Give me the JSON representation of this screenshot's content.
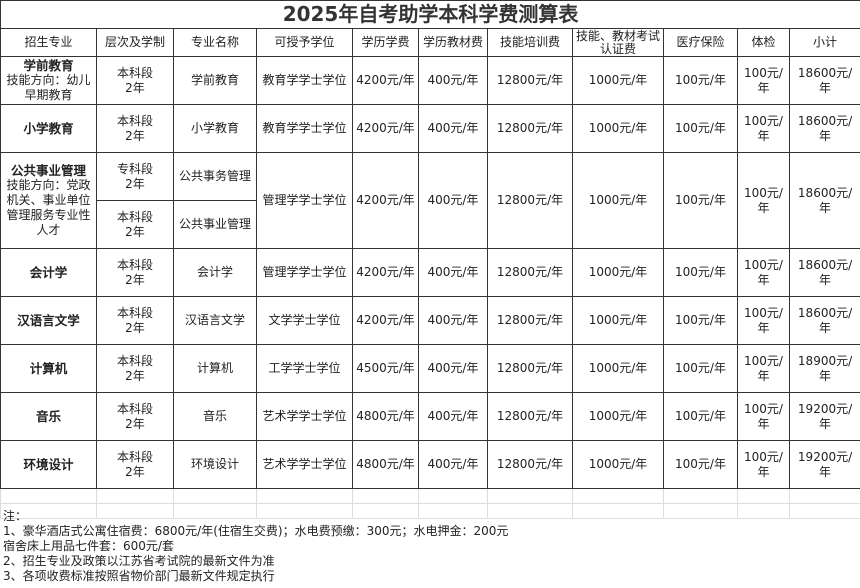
{
  "title": "2025年自考助学本科学费测算表",
  "headers": [
    "招生专业",
    "层次及学制",
    "专业名称",
    "可授予学位",
    "学历学费",
    "学历教材费",
    "技能培训费",
    "技能、教材考试认证费",
    "医疗保险",
    "体检",
    "小计"
  ],
  "rows": [
    {
      "major": "学前教育",
      "skill": "技能方向：幼儿早期教育",
      "levels": [
        {
          "level": "本科段",
          "years": "2年",
          "name": "学前教育"
        }
      ],
      "degree": "教育学学士学位",
      "tuition": "4200元/年",
      "books": "400元/年",
      "training": "12800元/年",
      "exam": "1000元/年",
      "insurance": "100元/年",
      "checkup": "100元/年",
      "total": "18600元/年"
    },
    {
      "major": "小学教育",
      "skill": "",
      "levels": [
        {
          "level": "本科段",
          "years": "2年",
          "name": "小学教育"
        }
      ],
      "degree": "教育学学士学位",
      "tuition": "4200元/年",
      "books": "400元/年",
      "training": "12800元/年",
      "exam": "1000元/年",
      "insurance": "100元/年",
      "checkup": "100元/年",
      "total": "18600元/年"
    },
    {
      "major": "公共事业管理",
      "skill": "技能方向：党政机关、事业单位管理服务专业性人才",
      "levels": [
        {
          "level": "专科段",
          "years": "2年",
          "name": "公共事务管理"
        },
        {
          "level": "本科段",
          "years": "2年",
          "name": "公共事业管理"
        }
      ],
      "degree": "管理学学士学位",
      "tuition": "4200元/年",
      "books": "400元/年",
      "training": "12800元/年",
      "exam": "1000元/年",
      "insurance": "100元/年",
      "checkup": "100元/年",
      "total": "18600元/年"
    },
    {
      "major": "会计学",
      "skill": "",
      "levels": [
        {
          "level": "本科段",
          "years": "2年",
          "name": "会计学"
        }
      ],
      "degree": "管理学学士学位",
      "tuition": "4200元/年",
      "books": "400元/年",
      "training": "12800元/年",
      "exam": "1000元/年",
      "insurance": "100元/年",
      "checkup": "100元/年",
      "total": "18600元/年"
    },
    {
      "major": "汉语言文学",
      "skill": "",
      "levels": [
        {
          "level": "本科段",
          "years": "2年",
          "name": "汉语言文学"
        }
      ],
      "degree": "文学学士学位",
      "tuition": "4200元/年",
      "books": "400元/年",
      "training": "12800元/年",
      "exam": "1000元/年",
      "insurance": "100元/年",
      "checkup": "100元/年",
      "total": "18600元/年"
    },
    {
      "major": "计算机",
      "skill": "",
      "levels": [
        {
          "level": "本科段",
          "years": "2年",
          "name": "计算机"
        }
      ],
      "degree": "工学学士学位",
      "tuition": "4500元/年",
      "books": "400元/年",
      "training": "12800元/年",
      "exam": "1000元/年",
      "insurance": "100元/年",
      "checkup": "100元/年",
      "total": "18900元/年"
    },
    {
      "major": "音乐",
      "skill": "",
      "levels": [
        {
          "level": "本科段",
          "years": "2年",
          "name": "音乐"
        }
      ],
      "degree": "艺术学学士学位",
      "tuition": "4800元/年",
      "books": "400元/年",
      "training": "12800元/年",
      "exam": "1000元/年",
      "insurance": "100元/年",
      "checkup": "100元/年",
      "total": "19200元/年"
    },
    {
      "major": "环境设计",
      "skill": "",
      "levels": [
        {
          "level": "本科段",
          "years": "2年",
          "name": "环境设计"
        }
      ],
      "degree": "艺术学学士学位",
      "tuition": "4800元/年",
      "books": "400元/年",
      "training": "12800元/年",
      "exam": "1000元/年",
      "insurance": "100元/年",
      "checkup": "100元/年",
      "total": "19200元/年"
    }
  ],
  "notes": {
    "heading": "注：",
    "lines": [
      "1、豪华酒店式公寓住宿费：6800元/年(住宿生交费)；水电费预缴：300元；水电押金：200元",
      "宿舍床上用品七件套：600元/套",
      "2、招生专业及政策以江苏省考试院的最新文件为准",
      "3、各项收费标准按照省物价部门最新文件规定执行"
    ]
  }
}
